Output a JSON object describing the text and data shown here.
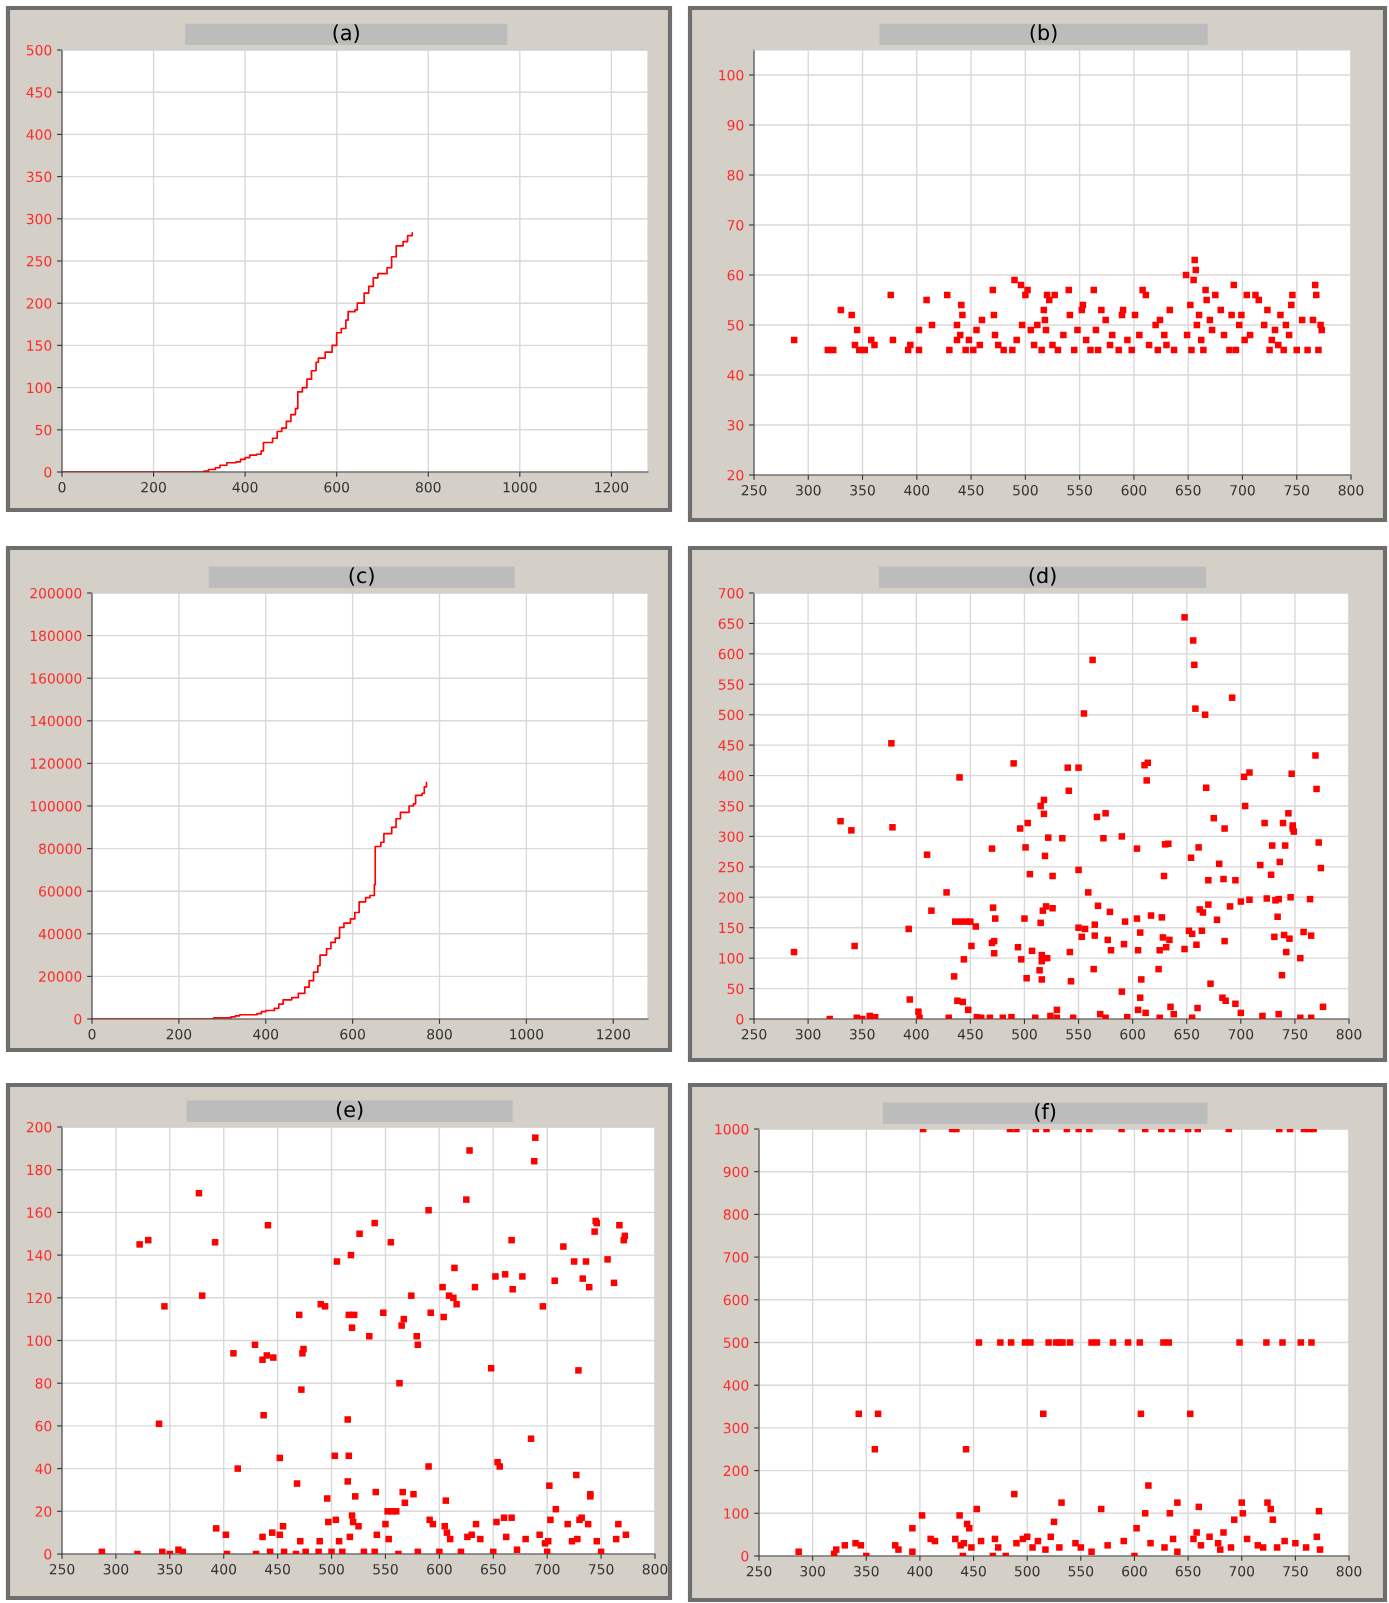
{
  "chart_data": [
    {
      "type": "step",
      "title": "(a)",
      "color": "#ff0000",
      "line_style": "solid",
      "grid": true,
      "xlim": [
        0,
        1280
      ],
      "xticks": [
        0,
        200,
        400,
        600,
        800,
        1000,
        1200
      ],
      "ylim": [
        0,
        500
      ],
      "yticks": [
        0,
        50,
        100,
        150,
        200,
        250,
        300,
        350,
        400,
        450,
        500
      ],
      "x": [
        0,
        280,
        310,
        320,
        335,
        345,
        360,
        380,
        390,
        400,
        410,
        425,
        435,
        440,
        460,
        470,
        480,
        490,
        500,
        510,
        515,
        525,
        535,
        545,
        555,
        560,
        575,
        590,
        600,
        610,
        620,
        625,
        640,
        645,
        660,
        670,
        680,
        690,
        710,
        720,
        730,
        745,
        755,
        765
      ],
      "values": [
        0,
        0,
        1,
        3,
        5,
        8,
        11,
        12,
        15,
        17,
        20,
        21,
        25,
        35,
        40,
        48,
        52,
        60,
        68,
        75,
        95,
        100,
        110,
        120,
        130,
        135,
        142,
        150,
        165,
        170,
        180,
        190,
        192,
        200,
        212,
        220,
        230,
        235,
        242,
        255,
        268,
        273,
        280,
        283
      ]
    },
    {
      "type": "scatter",
      "title": "(b)",
      "color": "#ff0000",
      "marker": "square",
      "grid": true,
      "xlim": [
        250,
        800
      ],
      "xticks": [
        250,
        300,
        350,
        400,
        450,
        500,
        550,
        600,
        650,
        700,
        750,
        800
      ],
      "ylim": [
        20,
        105
      ],
      "yticks": [
        20,
        30,
        40,
        50,
        60,
        70,
        80,
        90,
        100
      ],
      "x": [
        287,
        318,
        323,
        330,
        340,
        343,
        345,
        347,
        352,
        358,
        361,
        376,
        378,
        392,
        394,
        402,
        402,
        409,
        414,
        428,
        430,
        437,
        437,
        440,
        441,
        442,
        445,
        448,
        452,
        455,
        458,
        460,
        470,
        471,
        472,
        475,
        480,
        488,
        490,
        492,
        496,
        497,
        500,
        502,
        505,
        508,
        511,
        515,
        517,
        518,
        519,
        520,
        522,
        525,
        527,
        530,
        535,
        540,
        541,
        545,
        548,
        552,
        553,
        556,
        560,
        563,
        565,
        567,
        570,
        574,
        578,
        580,
        586,
        589,
        590,
        594,
        598,
        601,
        605,
        608,
        611,
        614,
        620,
        622,
        624,
        628,
        630,
        633,
        637,
        648,
        649,
        652,
        653,
        655,
        656,
        657,
        658,
        660,
        662,
        664,
        666,
        667,
        670,
        672,
        675,
        680,
        683,
        688,
        690,
        692,
        694,
        697,
        699,
        702,
        704,
        707,
        712,
        715,
        720,
        723,
        725,
        727,
        730,
        733,
        735,
        738,
        740,
        743,
        745,
        746,
        750,
        755,
        760,
        765,
        767,
        768,
        770,
        772,
        773
      ],
      "values": [
        47,
        45,
        45,
        53,
        52,
        46,
        49,
        45,
        45,
        47,
        46,
        56,
        47,
        45,
        46,
        49,
        45,
        55,
        50,
        56,
        45,
        50,
        47,
        48,
        54,
        52,
        45,
        47,
        45,
        49,
        46,
        51,
        57,
        52,
        48,
        46,
        45,
        45,
        59,
        47,
        58,
        50,
        56,
        57,
        49,
        46,
        50,
        45,
        53,
        51,
        49,
        56,
        55,
        46,
        56,
        45,
        48,
        57,
        52,
        45,
        49,
        53,
        54,
        47,
        45,
        57,
        49,
        45,
        53,
        51,
        46,
        48,
        45,
        52,
        53,
        47,
        45,
        52,
        48,
        57,
        56,
        46,
        50,
        45,
        51,
        48,
        46,
        53,
        45,
        60,
        48,
        54,
        45,
        59,
        63,
        61,
        50,
        52,
        47,
        45,
        57,
        55,
        51,
        49,
        56,
        53,
        48,
        45,
        52,
        58,
        45,
        50,
        52,
        47,
        56,
        48,
        56,
        55,
        50,
        53,
        45,
        47,
        49,
        46,
        52,
        45,
        50,
        48,
        54,
        56,
        45,
        51,
        45,
        51,
        58,
        56,
        45,
        50,
        49
      ]
    },
    {
      "type": "step",
      "title": "(c)",
      "color": "#ff0000",
      "line_style": "solid",
      "grid": true,
      "xlim": [
        0,
        1280
      ],
      "xticks": [
        0,
        200,
        400,
        600,
        800,
        1000,
        1200
      ],
      "ylim": [
        0,
        200000
      ],
      "yticks": [
        0,
        20000,
        40000,
        60000,
        80000,
        100000,
        120000,
        140000,
        160000,
        180000,
        200000
      ],
      "x": [
        0,
        280,
        320,
        330,
        340,
        380,
        390,
        400,
        420,
        430,
        440,
        460,
        475,
        490,
        500,
        510,
        520,
        525,
        540,
        550,
        560,
        570,
        580,
        595,
        605,
        615,
        630,
        640,
        650,
        652,
        665,
        672,
        690,
        700,
        710,
        730,
        740,
        745,
        760,
        765,
        770
      ],
      "values": [
        0,
        500,
        1000,
        1500,
        2000,
        2500,
        3500,
        4000,
        5000,
        7000,
        9000,
        10000,
        12000,
        15000,
        18000,
        22000,
        25000,
        30000,
        33000,
        36000,
        38000,
        43000,
        45000,
        47000,
        50000,
        55000,
        57000,
        58000,
        63000,
        81000,
        83000,
        87000,
        90000,
        94000,
        97000,
        100000,
        101000,
        105000,
        106000,
        109000,
        111000
      ]
    },
    {
      "type": "scatter",
      "title": "(d)",
      "color": "#ff0000",
      "marker": "square",
      "grid": true,
      "xlim": [
        250,
        800
      ],
      "xticks": [
        250,
        300,
        350,
        400,
        450,
        500,
        550,
        600,
        650,
        700,
        750,
        800
      ],
      "ylim": [
        0,
        700
      ],
      "yticks": [
        0,
        50,
        100,
        150,
        200,
        250,
        300,
        350,
        400,
        450,
        500,
        550,
        600,
        650,
        700
      ],
      "x": [
        287,
        320,
        330,
        340,
        343,
        345,
        350,
        357,
        362,
        377,
        378,
        393,
        394,
        402,
        403,
        410,
        414,
        428,
        430,
        435,
        436,
        438,
        440,
        441,
        443,
        444,
        446,
        448,
        450,
        451,
        455,
        456,
        468,
        470,
        470,
        471,
        472,
        472,
        473,
        480,
        488,
        490,
        494,
        496,
        497,
        500,
        501,
        502,
        503,
        505,
        507,
        510,
        514,
        515,
        515,
        516,
        516,
        516,
        517,
        518,
        518,
        519,
        520,
        521,
        522,
        524,
        526,
        526,
        530,
        535,
        540,
        541,
        542,
        543,
        550,
        550,
        550,
        553,
        555,
        556,
        559,
        563,
        564,
        565,
        565,
        567,
        568,
        570,
        573,
        575,
        577,
        579,
        580,
        590,
        590,
        592,
        593,
        595,
        604,
        604,
        605,
        605,
        607,
        607,
        608,
        611,
        612,
        613,
        614,
        617,
        624,
        625,
        627,
        628,
        629,
        630,
        631,
        633,
        634,
        635,
        638,
        648,
        648,
        652,
        654,
        655,
        656,
        657,
        658,
        659,
        660,
        661,
        662,
        664,
        665,
        667,
        668,
        670,
        670,
        672,
        675,
        678,
        680,
        683,
        684,
        685,
        685,
        686,
        690,
        692,
        695,
        695,
        700,
        703,
        704,
        708,
        708,
        718,
        722,
        724,
        728,
        729,
        731,
        732,
        734,
        735,
        736,
        738,
        739,
        740,
        741,
        742,
        744,
        745,
        746,
        747,
        748,
        748,
        749,
        755,
        758,
        764,
        765,
        769,
        770,
        772,
        774,
        776,
        700,
        720,
        735,
        755,
        765,
        530,
        545,
        575,
        625,
        655,
        460
      ],
      "values": [
        110,
        0,
        325,
        310,
        120,
        2,
        0,
        5,
        3,
        453,
        315,
        148,
        32,
        12,
        2,
        270,
        178,
        208,
        2,
        70,
        160,
        30,
        397,
        160,
        28,
        98,
        160,
        15,
        160,
        120,
        152,
        3,
        2,
        280,
        125,
        183,
        128,
        108,
        165,
        2,
        3,
        420,
        118,
        313,
        98,
        165,
        282,
        67,
        322,
        238,
        112,
        2,
        80,
        350,
        158,
        105,
        95,
        65,
        178,
        360,
        337,
        268,
        185,
        100,
        298,
        5,
        182,
        235,
        15,
        297,
        413,
        375,
        110,
        62,
        413,
        245,
        150,
        135,
        502,
        148,
        208,
        590,
        82,
        155,
        137,
        332,
        186,
        8,
        297,
        338,
        130,
        176,
        113,
        45,
        300,
        123,
        160,
        3,
        280,
        165,
        113,
        15,
        35,
        142,
        65,
        417,
        10,
        392,
        421,
        170,
        82,
        113,
        167,
        134,
        235,
        287,
        118,
        288,
        130,
        20,
        8,
        115,
        660,
        145,
        265,
        140,
        622,
        582,
        510,
        122,
        18,
        282,
        180,
        145,
        175,
        500,
        380,
        188,
        228,
        58,
        330,
        163,
        255,
        35,
        230,
        313,
        128,
        30,
        185,
        528,
        228,
        25,
        193,
        398,
        350,
        405,
        196,
        253,
        322,
        198,
        237,
        285,
        135,
        195,
        168,
        197,
        258,
        72,
        322,
        138,
        285,
        110,
        338,
        132,
        200,
        403,
        313,
        318,
        308,
        100,
        143,
        197,
        137,
        433,
        378,
        290,
        248,
        20,
        10,
        5,
        8,
        2,
        2,
        2,
        2,
        2,
        2,
        2,
        2
      ]
    },
    {
      "type": "scatter",
      "title": "(e)",
      "color": "#ff0000",
      "marker": "square",
      "grid": true,
      "xlim": [
        250,
        800
      ],
      "xticks": [
        250,
        300,
        350,
        400,
        450,
        500,
        550,
        600,
        650,
        700,
        750,
        800
      ],
      "ylim": [
        0,
        200
      ],
      "yticks": [
        0,
        20,
        40,
        60,
        80,
        100,
        120,
        140,
        160,
        180,
        200
      ],
      "x": [
        287,
        320,
        322,
        330,
        340,
        343,
        345,
        350,
        358,
        362,
        377,
        380,
        392,
        393,
        402,
        403,
        409,
        413,
        429,
        430,
        436,
        436,
        437,
        440,
        441,
        443,
        445,
        446,
        452,
        452,
        455,
        456,
        467,
        468,
        470,
        471,
        472,
        473,
        474,
        476,
        488,
        489,
        490,
        494,
        496,
        497,
        500,
        503,
        504,
        505,
        507,
        515,
        515,
        516,
        516,
        517,
        518,
        519,
        519,
        520,
        521,
        522,
        525,
        526,
        530,
        535,
        540,
        541,
        542,
        548,
        550,
        552,
        553,
        555,
        556,
        560,
        562,
        563,
        565,
        566,
        567,
        568,
        574,
        576,
        579,
        580,
        590,
        590,
        591,
        592,
        594,
        603,
        604,
        605,
        606,
        607,
        609,
        610,
        613,
        614,
        616,
        625,
        626,
        628,
        630,
        633,
        634,
        638,
        648,
        652,
        653,
        654,
        656,
        660,
        661,
        662,
        667,
        668,
        667,
        672,
        677,
        680,
        685,
        688,
        689,
        693,
        696,
        698,
        701,
        702,
        703,
        707,
        708,
        715,
        719,
        723,
        725,
        727,
        728,
        729,
        730,
        732,
        733,
        736,
        738,
        739,
        740,
        740,
        744,
        745,
        746,
        746,
        756,
        762,
        764,
        766,
        767,
        771,
        772,
        773,
        750,
        580,
        600,
        620,
        650,
        700,
        540,
        510
      ],
      "values": [
        1,
        0,
        145,
        147,
        61,
        1,
        116,
        0,
        2,
        1,
        169,
        121,
        146,
        12,
        9,
        0,
        94,
        40,
        98,
        0,
        91,
        8,
        65,
        93,
        154,
        1,
        10,
        92,
        45,
        9,
        13,
        1,
        0,
        33,
        112,
        6,
        77,
        94,
        96,
        1,
        1,
        6,
        117,
        116,
        26,
        15,
        1,
        46,
        16,
        137,
        6,
        63,
        34,
        46,
        112,
        8,
        140,
        106,
        18,
        15,
        112,
        27,
        13,
        150,
        1,
        102,
        155,
        29,
        9,
        113,
        14,
        20,
        7,
        146,
        20,
        20,
        0,
        80,
        107,
        29,
        110,
        24,
        121,
        28,
        102,
        98,
        41,
        161,
        16,
        113,
        14,
        125,
        111,
        13,
        25,
        10,
        121,
        7,
        120,
        134,
        117,
        166,
        8,
        189,
        9,
        125,
        14,
        7,
        87,
        130,
        15,
        43,
        41,
        17,
        131,
        8,
        147,
        124,
        17,
        2,
        130,
        7,
        54,
        184,
        195,
        9,
        116,
        5,
        6,
        32,
        16,
        128,
        21,
        144,
        14,
        6,
        137,
        37,
        7,
        86,
        16,
        17,
        129,
        137,
        14,
        125,
        28,
        27,
        151,
        156,
        155,
        6,
        138,
        127,
        7,
        14,
        154,
        147,
        149,
        9,
        1,
        1,
        1,
        1,
        1,
        1,
        1,
        1
      ]
    },
    {
      "type": "scatter",
      "title": "(f)",
      "color": "#ff0000",
      "marker": "square",
      "grid": true,
      "xlim": [
        250,
        800
      ],
      "xticks": [
        250,
        300,
        350,
        400,
        450,
        500,
        550,
        600,
        650,
        700,
        750,
        800
      ],
      "ylim": [
        0,
        1000
      ],
      "yticks": [
        0,
        100,
        200,
        300,
        400,
        500,
        600,
        700,
        800,
        900,
        1000
      ],
      "x": [
        287,
        320,
        322,
        330,
        340,
        343,
        345,
        350,
        358,
        361,
        377,
        380,
        393,
        393,
        402,
        403,
        410,
        414,
        430,
        433,
        434,
        437,
        438,
        440,
        441,
        443,
        444,
        446,
        448,
        453,
        455,
        457,
        468,
        470,
        473,
        475,
        480,
        484,
        485,
        488,
        490,
        490,
        496,
        498,
        500,
        503,
        505,
        508,
        510,
        515,
        517,
        518,
        520,
        522,
        525,
        527,
        530,
        532,
        533,
        537,
        540,
        545,
        548,
        550,
        558,
        560,
        565,
        569,
        575,
        580,
        588,
        590,
        594,
        600,
        602,
        605,
        606,
        610,
        610,
        613,
        615,
        625,
        627,
        628,
        632,
        633,
        635,
        636,
        640,
        650,
        652,
        655,
        658,
        659,
        660,
        662,
        670,
        678,
        683,
        688,
        690,
        693,
        698,
        700,
        701,
        705,
        715,
        723,
        724,
        727,
        729,
        733,
        735,
        738,
        740,
        745,
        755,
        758,
        760,
        763,
        765,
        767,
        770,
        772,
        773,
        750,
        720,
        680,
        640,
        560,
        530
      ],
      "values": [
        10,
        5,
        15,
        25,
        30,
        333,
        25,
        0,
        250,
        333,
        25,
        15,
        65,
        10,
        95,
        1000,
        40,
        35,
        1000,
        40,
        1000,
        95,
        25,
        0,
        30,
        250,
        75,
        65,
        20,
        110,
        500,
        35,
        0,
        40,
        20,
        500,
        0,
        1000,
        500,
        145,
        1000,
        30,
        40,
        500,
        45,
        500,
        20,
        1000,
        35,
        333,
        15,
        1000,
        500,
        45,
        80,
        500,
        500,
        125,
        500,
        1000,
        500,
        30,
        1000,
        20,
        1000,
        500,
        500,
        110,
        25,
        500,
        1000,
        35,
        500,
        0,
        65,
        500,
        333,
        1000,
        100,
        165,
        30,
        1000,
        500,
        20,
        500,
        100,
        1000,
        40,
        125,
        1000,
        333,
        40,
        55,
        1000,
        115,
        25,
        45,
        30,
        55,
        1000,
        20,
        85,
        500,
        125,
        100,
        40,
        25,
        500,
        125,
        110,
        85,
        20,
        1000,
        500,
        35,
        1000,
        500,
        1000,
        20,
        1000,
        500,
        1000,
        45,
        105,
        15,
        30,
        20,
        15,
        10,
        10,
        20
      ]
    }
  ]
}
